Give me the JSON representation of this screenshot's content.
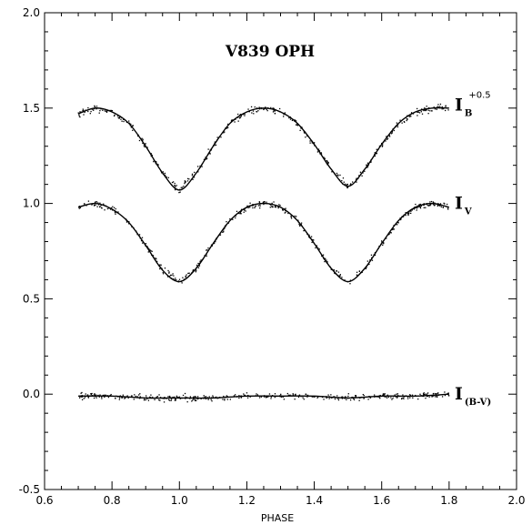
{
  "chart_data": {
    "type": "scatter",
    "title": "V839 OPH",
    "xlabel": "PHASE",
    "ylabel": "",
    "xlim": [
      0.6,
      2.0
    ],
    "ylim": [
      -0.5,
      2.0
    ],
    "x_ticks": [
      "0.6",
      "0.8",
      "1.0",
      "1.2",
      "1.4",
      "1.6",
      "1.8",
      "2.0"
    ],
    "y_ticks": [
      "-0.5",
      "0.0",
      "0.5",
      "1.0",
      "1.5",
      "2.0"
    ],
    "grid": false,
    "series": [
      {
        "name": "I",
        "label_sub": "B",
        "label_sup": "+0.5",
        "x": [
          0.7,
          0.75,
          0.8,
          0.85,
          0.9,
          0.95,
          1.0,
          1.05,
          1.1,
          1.15,
          1.2,
          1.25,
          1.3,
          1.35,
          1.4,
          1.45,
          1.5,
          1.55,
          1.6,
          1.65,
          1.7,
          1.75,
          1.8
        ],
        "y": [
          1.47,
          1.5,
          1.48,
          1.42,
          1.3,
          1.16,
          1.07,
          1.16,
          1.3,
          1.42,
          1.48,
          1.5,
          1.48,
          1.42,
          1.31,
          1.18,
          1.09,
          1.18,
          1.31,
          1.42,
          1.48,
          1.5,
          1.5
        ]
      },
      {
        "name": "I",
        "label_sub": "V",
        "label_sup": "",
        "x": [
          0.7,
          0.75,
          0.8,
          0.85,
          0.9,
          0.95,
          1.0,
          1.05,
          1.1,
          1.15,
          1.2,
          1.25,
          1.3,
          1.35,
          1.4,
          1.45,
          1.5,
          1.55,
          1.6,
          1.65,
          1.7,
          1.75,
          1.8
        ],
        "y": [
          0.98,
          1.0,
          0.97,
          0.9,
          0.78,
          0.65,
          0.59,
          0.66,
          0.79,
          0.91,
          0.98,
          1.0,
          0.98,
          0.91,
          0.79,
          0.66,
          0.59,
          0.66,
          0.79,
          0.91,
          0.98,
          1.0,
          0.98
        ]
      },
      {
        "name": "I",
        "label_sub": "(B-V)",
        "label_sup": "",
        "x": [
          0.7,
          0.8,
          0.9,
          1.0,
          1.1,
          1.2,
          1.3,
          1.4,
          1.5,
          1.6,
          1.7,
          1.8
        ],
        "y": [
          -0.01,
          -0.01,
          -0.02,
          -0.02,
          -0.02,
          -0.01,
          -0.01,
          -0.01,
          -0.02,
          -0.01,
          -0.01,
          0.0
        ]
      }
    ]
  }
}
